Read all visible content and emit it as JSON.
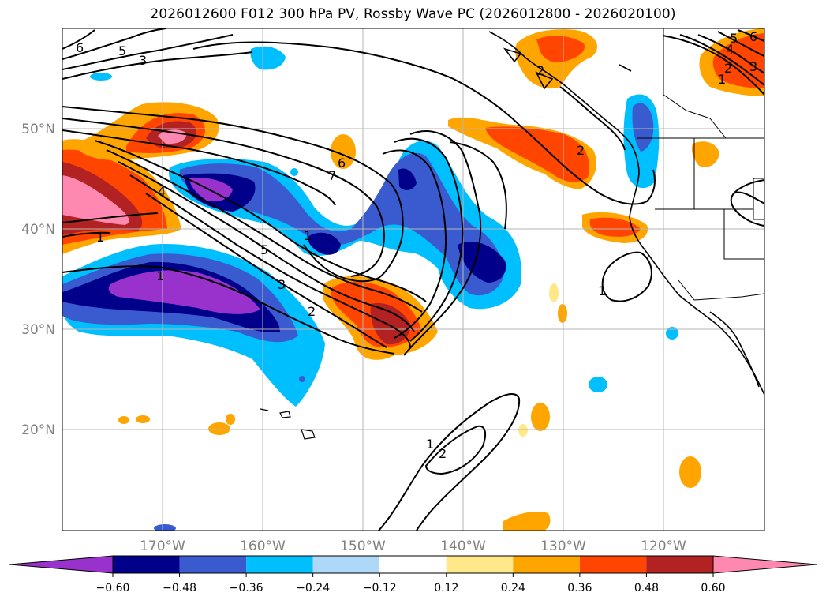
{
  "title": "2026012600 F012 300 hPa PV, Rossby Wave PC (2026012800 - 2026020100)",
  "map": {
    "lon_labels": [
      "170°W",
      "160°W",
      "150°W",
      "140°W",
      "130°W",
      "120°W"
    ],
    "lat_labels": [
      "50°N",
      "40°N",
      "30°N",
      "20°N"
    ],
    "contour_labels": [
      "6",
      "5",
      "3",
      "7",
      "6",
      "4",
      "1",
      "5",
      "1",
      "3",
      "2",
      "2",
      "1",
      "1",
      "2",
      "6",
      "5",
      "4",
      "3",
      "2",
      "1",
      "2",
      "1"
    ]
  },
  "colorbar": {
    "ticks": [
      "−0.60",
      "−0.48",
      "−0.36",
      "−0.24",
      "−0.12",
      "0.12",
      "0.24",
      "0.36",
      "0.48",
      "0.60"
    ],
    "colors": [
      "#9932cc",
      "#00008b",
      "#3a5bcf",
      "#00bfff",
      "#add8f7",
      "#ffffff",
      "#ffe88a",
      "#ffa500",
      "#ff4500",
      "#b22222",
      "#ff88b0"
    ]
  }
}
